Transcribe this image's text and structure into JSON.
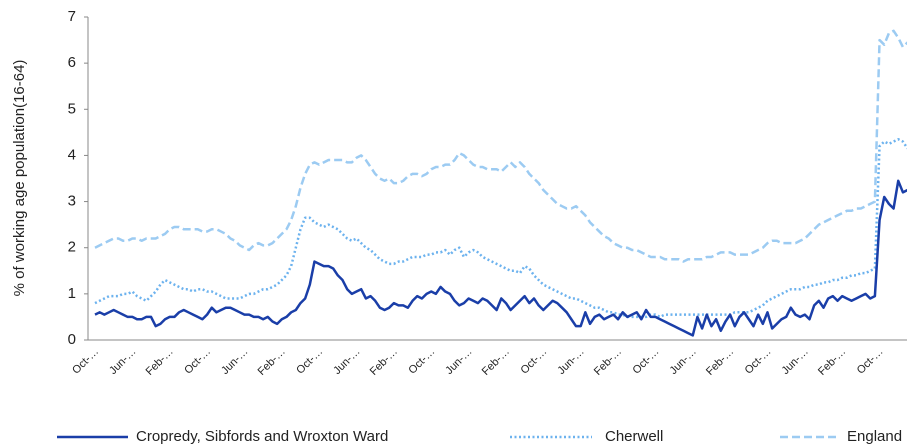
{
  "chart_data": {
    "type": "line",
    "y_label": "% of working age population(16-64)",
    "ylim": [
      0,
      7
    ],
    "yticks": [
      0,
      1,
      2,
      3,
      4,
      5,
      6,
      7
    ],
    "grid": false,
    "legend": "bottom",
    "categories": [
      "Oct-…",
      null,
      null,
      null,
      null,
      null,
      null,
      null,
      "Jun-…",
      null,
      null,
      null,
      null,
      null,
      null,
      null,
      "Feb-…",
      null,
      null,
      null,
      null,
      null,
      null,
      null,
      "Oct-…",
      null,
      null,
      null,
      null,
      null,
      null,
      null,
      "Jun-…",
      null,
      null,
      null,
      null,
      null,
      null,
      null,
      "Feb-…",
      null,
      null,
      null,
      null,
      null,
      null,
      null,
      "Oct-…",
      null,
      null,
      null,
      null,
      null,
      null,
      null,
      "Jun-…",
      null,
      null,
      null,
      null,
      null,
      null,
      null,
      "Feb-…",
      null,
      null,
      null,
      null,
      null,
      null,
      null,
      "Oct-…",
      null,
      null,
      null,
      null,
      null,
      null,
      null,
      "Jun-…",
      null,
      null,
      null,
      null,
      null,
      null,
      null,
      "Feb-…",
      null,
      null,
      null,
      null,
      null,
      null,
      null,
      "Oct-…",
      null,
      null,
      null,
      null,
      null,
      null,
      null,
      "Jun-…",
      null,
      null,
      null,
      null,
      null,
      null,
      null,
      "Feb-…",
      null,
      null,
      null,
      null,
      null,
      null,
      null,
      "Oct-…",
      null,
      null,
      null,
      null,
      null,
      null,
      null,
      "Jun-…",
      null,
      null,
      null,
      null,
      null,
      null,
      null,
      "Feb-…",
      null,
      null,
      null,
      null,
      null,
      null,
      null,
      "Oct-…",
      null,
      null,
      null,
      null,
      null,
      null,
      null,
      "Jun-…",
      null,
      null,
      null,
      null,
      null,
      null,
      null,
      "Feb-…",
      null,
      null,
      null,
      null,
      null,
      null,
      null,
      "Oct-…",
      null,
      null,
      null,
      null,
      null,
      null
    ],
    "series": [
      {
        "name": "Cropredy, Sibfords and Wroxton Ward",
        "color": "#1a3ea8",
        "style": "solid",
        "values": [
          0.55,
          0.6,
          0.55,
          0.6,
          0.65,
          0.6,
          0.55,
          0.5,
          0.5,
          0.45,
          0.45,
          0.5,
          0.5,
          0.3,
          0.35,
          0.45,
          0.5,
          0.5,
          0.6,
          0.65,
          0.6,
          0.55,
          0.5,
          0.45,
          0.55,
          0.7,
          0.6,
          0.65,
          0.7,
          0.7,
          0.65,
          0.6,
          0.55,
          0.55,
          0.5,
          0.5,
          0.45,
          0.5,
          0.4,
          0.35,
          0.45,
          0.5,
          0.6,
          0.65,
          0.8,
          0.9,
          1.2,
          1.7,
          1.65,
          1.6,
          1.6,
          1.55,
          1.4,
          1.3,
          1.1,
          1.0,
          1.05,
          1.1,
          0.9,
          0.95,
          0.85,
          0.7,
          0.65,
          0.7,
          0.8,
          0.75,
          0.75,
          0.7,
          0.85,
          0.95,
          0.9,
          1.0,
          1.05,
          1.0,
          1.15,
          1.05,
          1.0,
          0.85,
          0.75,
          0.8,
          0.9,
          0.85,
          0.8,
          0.9,
          0.85,
          0.75,
          0.65,
          0.9,
          0.8,
          0.65,
          0.75,
          0.85,
          0.95,
          0.8,
          0.9,
          0.75,
          0.65,
          0.75,
          0.85,
          0.8,
          0.7,
          0.6,
          0.45,
          0.3,
          0.3,
          0.6,
          0.35,
          0.5,
          0.55,
          0.45,
          0.5,
          0.55,
          0.45,
          0.6,
          0.5,
          0.55,
          0.6,
          0.45,
          0.65,
          0.5,
          0.5,
          0.45,
          0.4,
          0.35,
          0.3,
          0.25,
          0.2,
          0.15,
          0.1,
          0.5,
          0.25,
          0.55,
          0.3,
          0.45,
          0.2,
          0.4,
          0.55,
          0.3,
          0.5,
          0.6,
          0.45,
          0.3,
          0.55,
          0.35,
          0.6,
          0.25,
          0.35,
          0.45,
          0.5,
          0.7,
          0.55,
          0.5,
          0.55,
          0.45,
          0.75,
          0.85,
          0.7,
          0.9,
          0.95,
          0.85,
          0.95,
          0.9,
          0.85,
          0.9,
          0.95,
          1.0,
          0.9,
          0.95,
          2.6,
          3.1,
          2.95,
          2.85,
          3.45,
          3.2,
          3.25
        ]
      },
      {
        "name": "Cherwell",
        "color": "#6cb2ee",
        "style": "dotted",
        "values": [
          0.8,
          0.85,
          0.9,
          0.95,
          0.95,
          0.95,
          1.0,
          1.0,
          1.05,
          0.95,
          0.9,
          0.85,
          0.95,
          1.05,
          1.2,
          1.3,
          1.25,
          1.2,
          1.15,
          1.1,
          1.1,
          1.05,
          1.1,
          1.1,
          1.05,
          1.05,
          1.0,
          0.95,
          0.9,
          0.9,
          0.9,
          0.9,
          0.95,
          1.0,
          1.0,
          1.05,
          1.1,
          1.1,
          1.15,
          1.2,
          1.3,
          1.4,
          1.6,
          2.0,
          2.4,
          2.65,
          2.65,
          2.55,
          2.5,
          2.45,
          2.5,
          2.45,
          2.4,
          2.3,
          2.2,
          2.15,
          2.2,
          2.1,
          2.0,
          1.95,
          1.85,
          1.75,
          1.7,
          1.65,
          1.65,
          1.7,
          1.7,
          1.75,
          1.8,
          1.8,
          1.8,
          1.85,
          1.85,
          1.9,
          1.9,
          1.95,
          1.85,
          1.95,
          2.0,
          1.8,
          1.9,
          1.95,
          1.9,
          1.8,
          1.75,
          1.7,
          1.65,
          1.6,
          1.55,
          1.5,
          1.5,
          1.45,
          1.6,
          1.55,
          1.4,
          1.3,
          1.2,
          1.15,
          1.1,
          1.05,
          1.0,
          0.95,
          0.9,
          0.9,
          0.85,
          0.8,
          0.75,
          0.7,
          0.7,
          0.65,
          0.6,
          0.6,
          0.55,
          0.55,
          0.5,
          0.5,
          0.5,
          0.5,
          0.5,
          0.55,
          0.55,
          0.5,
          0.55,
          0.55,
          0.55,
          0.55,
          0.55,
          0.55,
          0.55,
          0.55,
          0.55,
          0.55,
          0.55,
          0.55,
          0.55,
          0.55,
          0.55,
          0.6,
          0.6,
          0.6,
          0.6,
          0.65,
          0.7,
          0.75,
          0.85,
          0.9,
          0.95,
          1.0,
          1.05,
          1.1,
          1.1,
          1.1,
          1.15,
          1.15,
          1.2,
          1.2,
          1.25,
          1.25,
          1.3,
          1.3,
          1.35,
          1.35,
          1.4,
          1.4,
          1.45,
          1.45,
          1.5,
          1.55,
          4.2,
          4.3,
          4.25,
          4.3,
          4.35,
          4.3,
          4.15
        ]
      },
      {
        "name": "England",
        "color": "#9ccbf2",
        "style": "dashed",
        "values": [
          2.0,
          2.05,
          2.1,
          2.15,
          2.2,
          2.2,
          2.15,
          2.15,
          2.2,
          2.2,
          2.15,
          2.2,
          2.2,
          2.2,
          2.25,
          2.3,
          2.4,
          2.45,
          2.45,
          2.4,
          2.4,
          2.4,
          2.4,
          2.35,
          2.35,
          2.4,
          2.4,
          2.35,
          2.3,
          2.2,
          2.15,
          2.05,
          2.0,
          1.95,
          2.05,
          2.1,
          2.05,
          2.05,
          2.1,
          2.2,
          2.3,
          2.4,
          2.6,
          2.9,
          3.3,
          3.6,
          3.8,
          3.85,
          3.8,
          3.85,
          3.9,
          3.9,
          3.9,
          3.9,
          3.85,
          3.85,
          3.95,
          4.0,
          3.9,
          3.75,
          3.6,
          3.5,
          3.45,
          3.5,
          3.4,
          3.4,
          3.45,
          3.55,
          3.6,
          3.6,
          3.55,
          3.6,
          3.7,
          3.75,
          3.75,
          3.8,
          3.8,
          3.9,
          4.05,
          4.0,
          3.9,
          3.8,
          3.75,
          3.75,
          3.7,
          3.7,
          3.7,
          3.65,
          3.75,
          3.85,
          3.75,
          3.85,
          3.75,
          3.6,
          3.5,
          3.4,
          3.25,
          3.15,
          3.05,
          2.95,
          2.9,
          2.85,
          2.85,
          2.9,
          2.8,
          2.7,
          2.55,
          2.45,
          2.35,
          2.25,
          2.2,
          2.1,
          2.05,
          2.0,
          2.0,
          1.95,
          1.95,
          1.9,
          1.85,
          1.8,
          1.8,
          1.8,
          1.75,
          1.75,
          1.75,
          1.75,
          1.7,
          1.75,
          1.75,
          1.75,
          1.75,
          1.8,
          1.8,
          1.85,
          1.9,
          1.9,
          1.9,
          1.85,
          1.85,
          1.85,
          1.85,
          1.9,
          1.95,
          2.0,
          2.1,
          2.15,
          2.15,
          2.1,
          2.1,
          2.1,
          2.1,
          2.15,
          2.2,
          2.3,
          2.4,
          2.5,
          2.55,
          2.6,
          2.65,
          2.7,
          2.75,
          2.8,
          2.8,
          2.85,
          2.85,
          2.9,
          2.95,
          3.0,
          6.5,
          6.4,
          6.65,
          6.7,
          6.55,
          6.35,
          6.45
        ]
      }
    ]
  }
}
